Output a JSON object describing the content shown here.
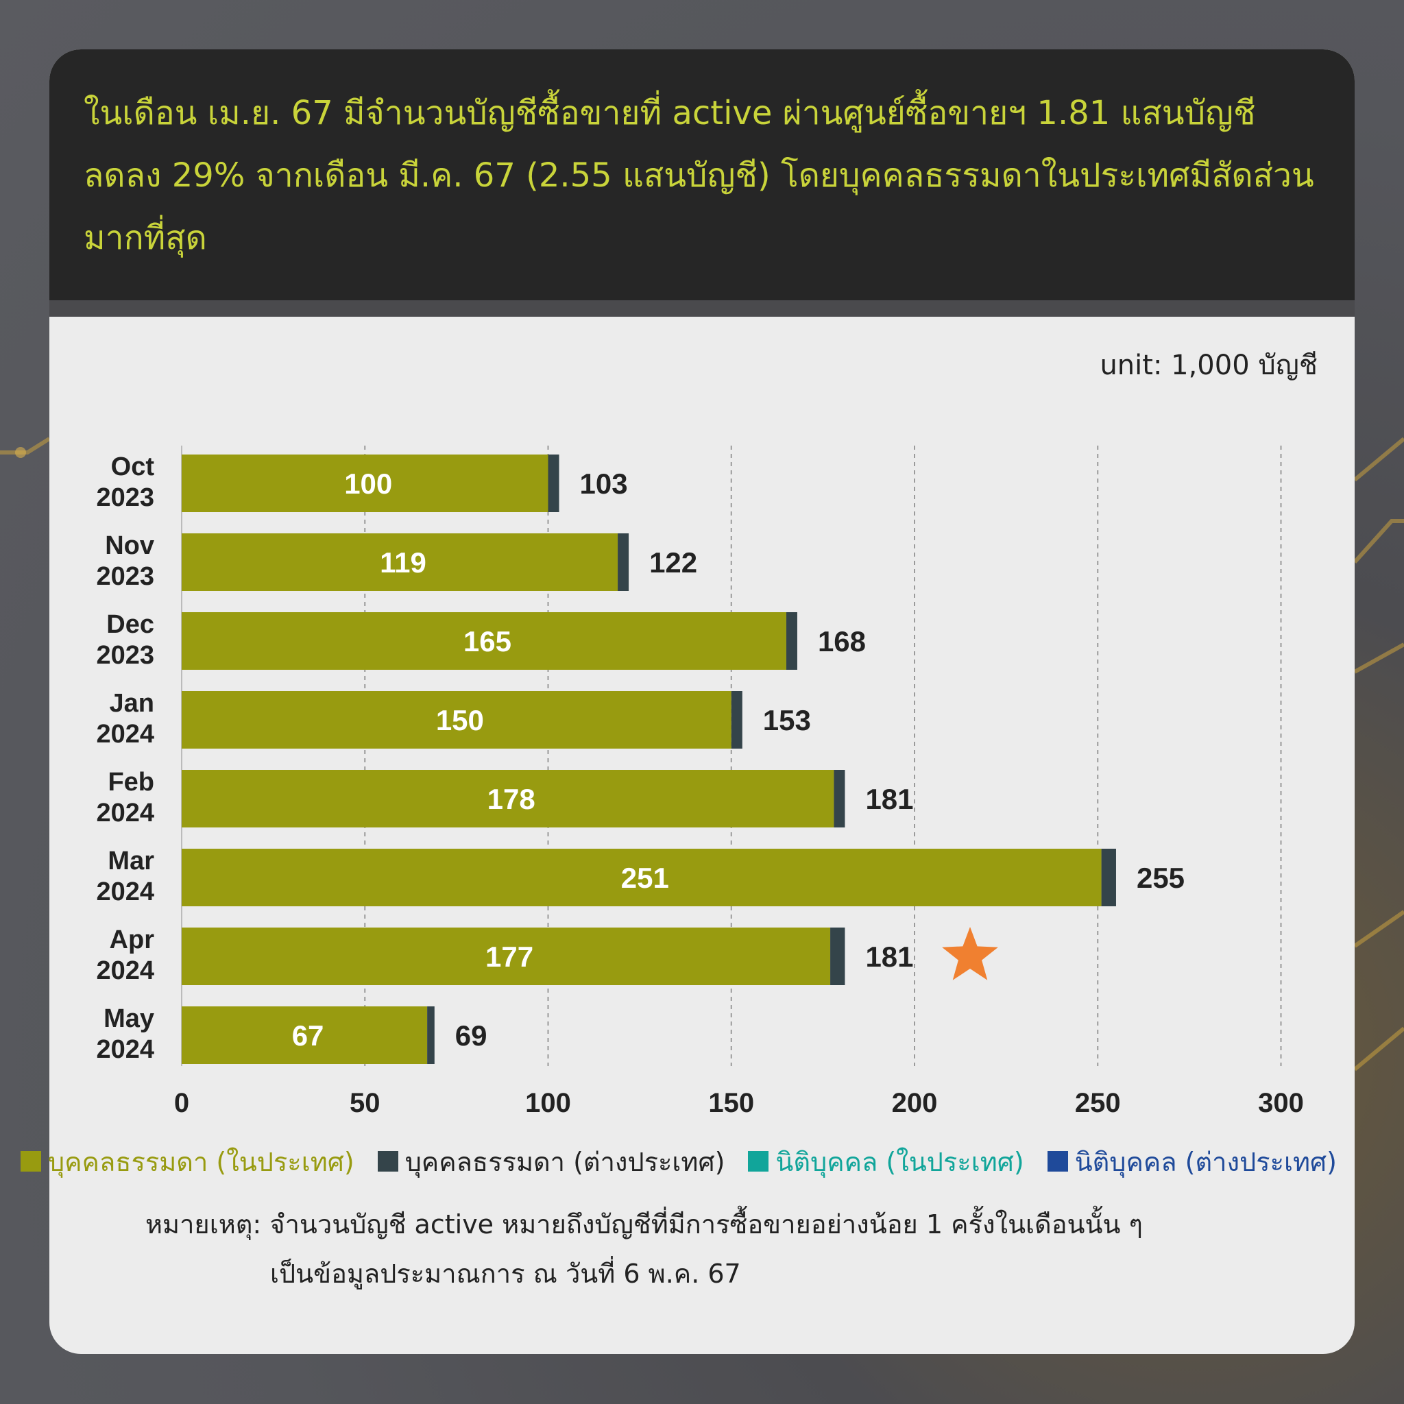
{
  "headline": "ในเดือน เม.ย. 67 มีจำนวนบัญชีซื้อขายที่ active ผ่านศูนย์ซื้อขายฯ 1.81 แสนบัญชี ลดลง 29% จากเดือน มี.ค. 67 (2.55 แสนบัญชี) โดยบุคคลธรรมดาในประเทศมีสัดส่วนมากที่สุด",
  "unit_label": "unit: 1,000 บัญชี",
  "colors": {
    "individual_domestic": "#989b10",
    "individual_foreign": "#34444a",
    "juristic_domestic": "#11a59a",
    "juristic_foreign": "#1f4a9a",
    "highlight_star": "#f08030",
    "headline_text": "#c9d43a"
  },
  "legend": [
    {
      "label": "บุคคลธรรมดา (ในประเทศ)",
      "color": "#989b10",
      "text_color": "#989b10"
    },
    {
      "label": "บุคคลธรรมดา (ต่างประเทศ)",
      "color": "#34444a",
      "text_color": "#222222"
    },
    {
      "label": "นิติบุคคล (ในประเทศ)",
      "color": "#11a59a",
      "text_color": "#11a59a"
    },
    {
      "label": "นิติบุคคล (ต่างประเทศ)",
      "color": "#1f4a9a",
      "text_color": "#1f4a9a"
    }
  ],
  "note": {
    "line1": "หมายเหตุ: จำนวนบัญชี active หมายถึงบัญชีที่มีการซื้อขายอย่างน้อย 1 ครั้งในเดือนนั้น ๆ",
    "line2": "เป็นข้อมูลประมาณการ ณ วันที่ 6 พ.ค. 67"
  },
  "chart_data": {
    "type": "bar",
    "orientation": "horizontal",
    "stacked": true,
    "categories": [
      [
        "Oct",
        "2023"
      ],
      [
        "Nov",
        "2023"
      ],
      [
        "Dec",
        "2023"
      ],
      [
        "Jan",
        "2024"
      ],
      [
        "Feb",
        "2024"
      ],
      [
        "Mar",
        "2024"
      ],
      [
        "Apr",
        "2024"
      ],
      [
        "May",
        "2024"
      ]
    ],
    "series": [
      {
        "name": "บุคคลธรรมดา (ในประเทศ)",
        "values": [
          100,
          119,
          165,
          150,
          178,
          251,
          177,
          67
        ],
        "labels": [
          "100",
          "119",
          "165",
          "150",
          "178",
          "251",
          "177",
          "67"
        ]
      },
      {
        "name": "บุคคลธรรมดา (ต่างประเทศ)",
        "values": [
          3,
          3,
          3,
          3,
          3,
          4,
          4,
          2
        ]
      }
    ],
    "totals": [
      103,
      122,
      168,
      153,
      181,
      255,
      181,
      69
    ],
    "total_labels": [
      "103",
      "122",
      "168",
      "153",
      "181",
      "255",
      "181",
      "69"
    ],
    "xlim": [
      0,
      300
    ],
    "xticks": [
      "0",
      "50",
      "100",
      "150",
      "200",
      "250",
      "300"
    ],
    "grid": "vertical dashed",
    "highlight_category": "Apr 2024",
    "highlight_marker": "star"
  }
}
